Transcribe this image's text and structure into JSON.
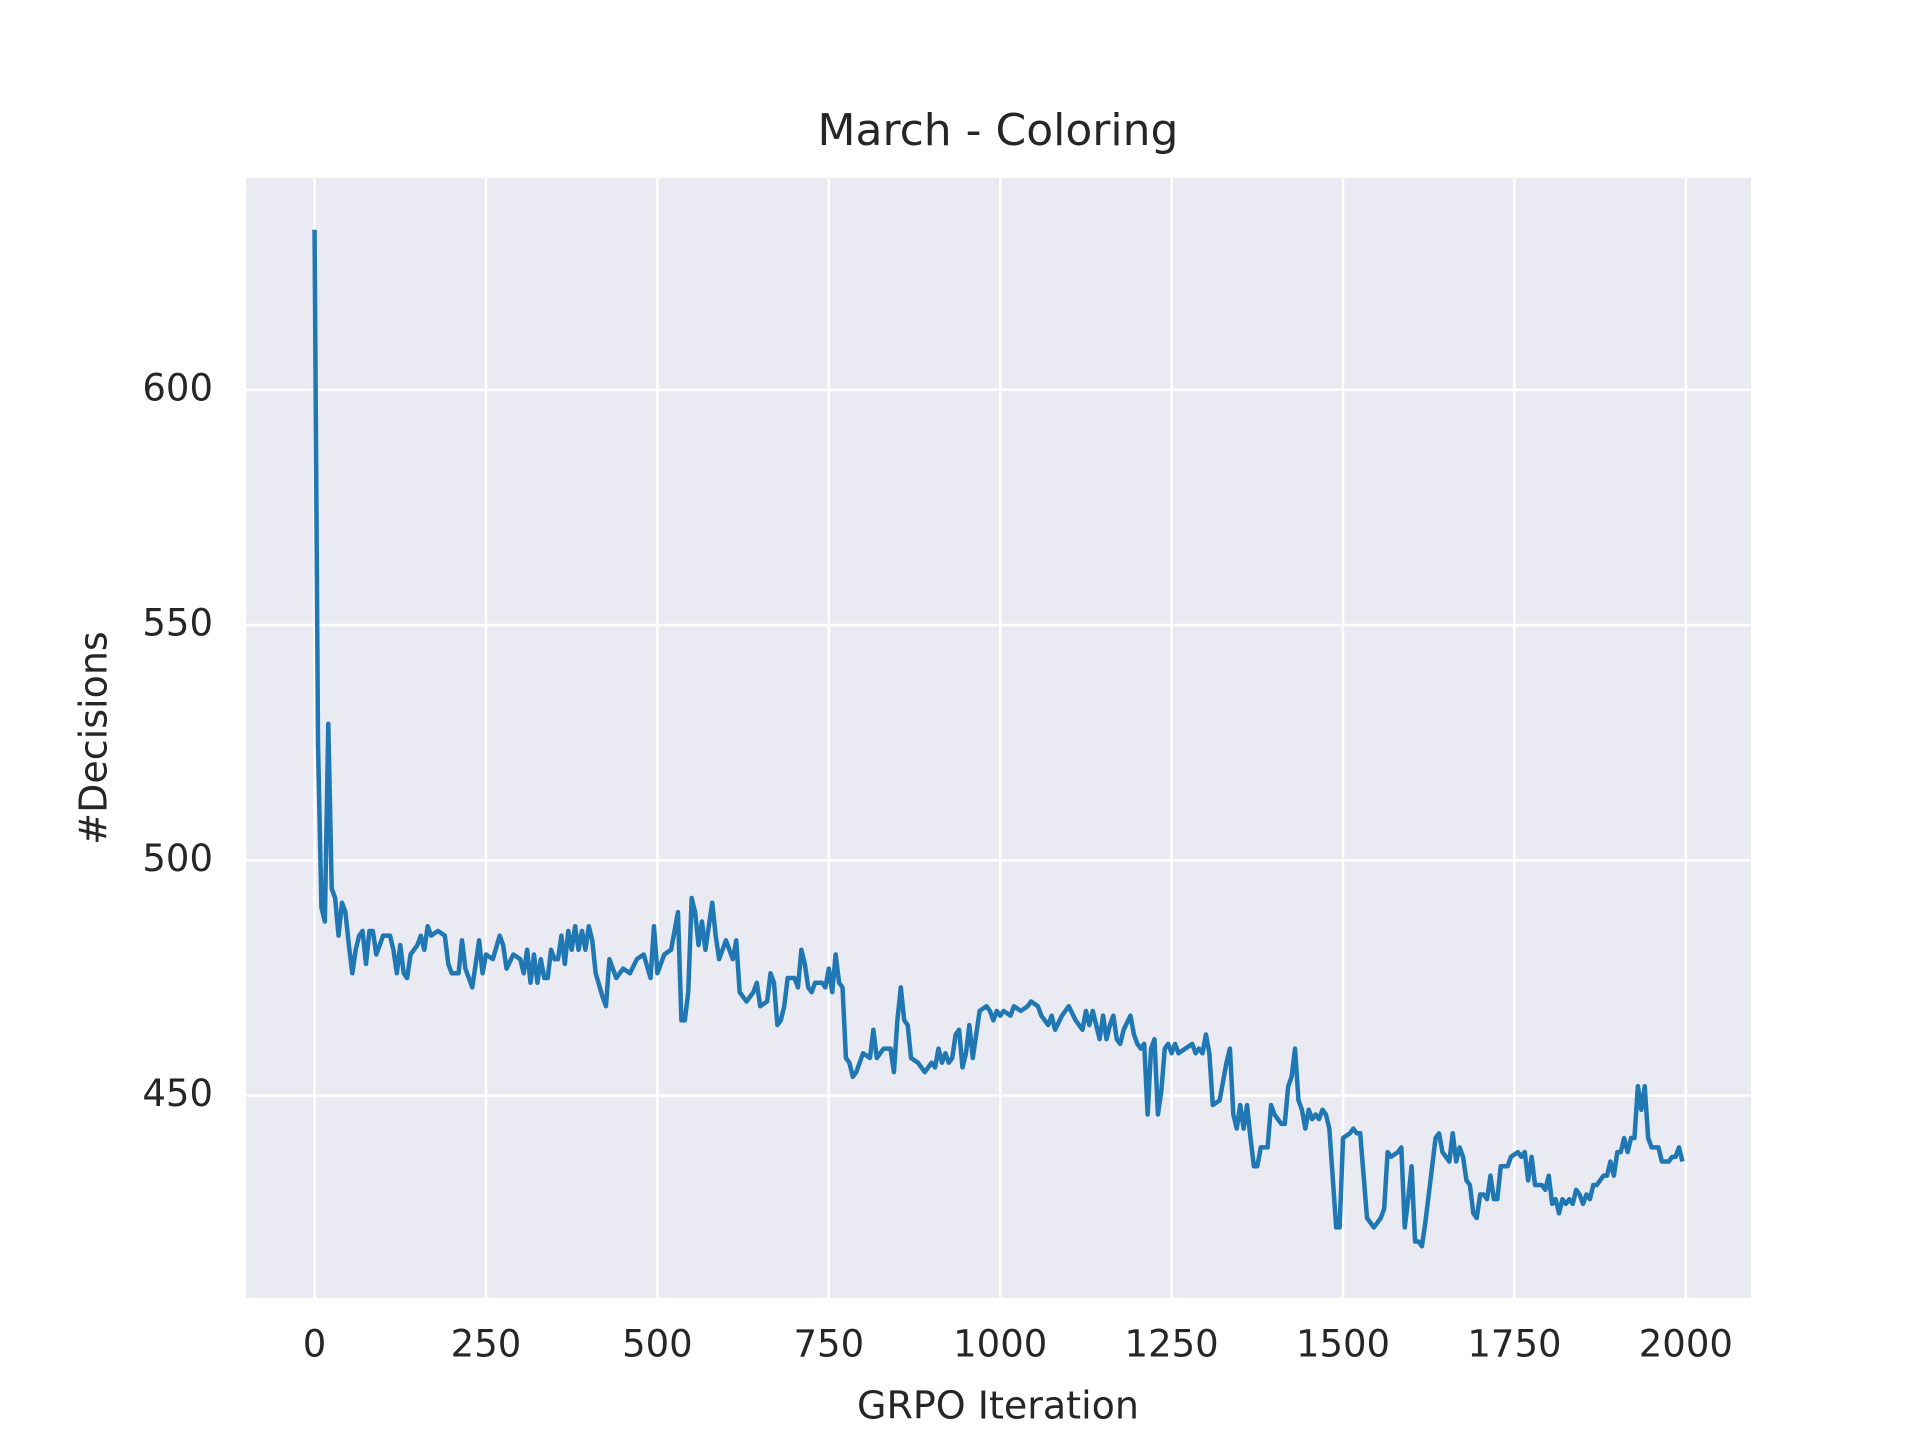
{
  "chart_data": {
    "type": "line",
    "title": "March - Coloring",
    "xlabel": "GRPO Iteration",
    "ylabel": "#Decisions",
    "x": [
      0,
      5,
      10,
      15,
      20,
      25,
      30,
      35,
      40,
      45,
      50,
      55,
      60,
      65,
      70,
      75,
      80,
      85,
      90,
      100,
      110,
      115,
      120,
      125,
      130,
      135,
      140,
      150,
      155,
      160,
      165,
      170,
      180,
      190,
      195,
      200,
      210,
      215,
      220,
      230,
      240,
      245,
      250,
      260,
      270,
      275,
      280,
      290,
      300,
      305,
      310,
      315,
      320,
      325,
      330,
      335,
      340,
      345,
      350,
      355,
      360,
      365,
      370,
      375,
      380,
      385,
      390,
      395,
      400,
      405,
      410,
      420,
      425,
      430,
      440,
      450,
      460,
      470,
      480,
      490,
      495,
      500,
      505,
      510,
      520,
      530,
      535,
      540,
      545,
      550,
      555,
      560,
      565,
      570,
      580,
      585,
      590,
      600,
      610,
      615,
      620,
      630,
      640,
      645,
      650,
      660,
      665,
      670,
      675,
      680,
      685,
      690,
      700,
      705,
      710,
      715,
      720,
      725,
      730,
      740,
      745,
      750,
      755,
      760,
      765,
      770,
      775,
      780,
      785,
      790,
      800,
      810,
      815,
      820,
      830,
      840,
      845,
      850,
      855,
      860,
      865,
      870,
      880,
      890,
      900,
      905,
      910,
      915,
      920,
      925,
      930,
      935,
      940,
      945,
      950,
      955,
      960,
      970,
      980,
      985,
      990,
      995,
      1000,
      1005,
      1015,
      1020,
      1030,
      1040,
      1045,
      1055,
      1060,
      1070,
      1075,
      1080,
      1090,
      1100,
      1110,
      1115,
      1120,
      1125,
      1130,
      1135,
      1140,
      1145,
      1150,
      1155,
      1160,
      1165,
      1170,
      1175,
      1180,
      1190,
      1195,
      1200,
      1205,
      1210,
      1215,
      1220,
      1225,
      1230,
      1235,
      1240,
      1245,
      1250,
      1255,
      1260,
      1270,
      1280,
      1285,
      1290,
      1295,
      1300,
      1305,
      1310,
      1320,
      1330,
      1335,
      1340,
      1345,
      1350,
      1355,
      1360,
      1365,
      1370,
      1375,
      1380,
      1390,
      1395,
      1400,
      1410,
      1415,
      1420,
      1425,
      1430,
      1435,
      1440,
      1445,
      1450,
      1455,
      1460,
      1465,
      1470,
      1475,
      1480,
      1490,
      1495,
      1500,
      1510,
      1515,
      1520,
      1525,
      1535,
      1540,
      1545,
      1555,
      1560,
      1565,
      1570,
      1580,
      1585,
      1590,
      1595,
      1600,
      1605,
      1610,
      1615,
      1620,
      1630,
      1635,
      1640,
      1645,
      1650,
      1655,
      1660,
      1665,
      1670,
      1675,
      1680,
      1685,
      1690,
      1695,
      1700,
      1705,
      1710,
      1715,
      1720,
      1725,
      1730,
      1735,
      1740,
      1745,
      1755,
      1760,
      1765,
      1770,
      1775,
      1780,
      1790,
      1795,
      1800,
      1805,
      1810,
      1815,
      1820,
      1825,
      1830,
      1835,
      1840,
      1845,
      1850,
      1855,
      1860,
      1865,
      1870,
      1875,
      1880,
      1885,
      1890,
      1895,
      1900,
      1905,
      1910,
      1915,
      1920,
      1925,
      1930,
      1935,
      1940,
      1945,
      1950,
      1955,
      1960,
      1965,
      1975,
      1980,
      1985,
      1990,
      1995
    ],
    "values": [
      634,
      525,
      490,
      487,
      529,
      494,
      492,
      484,
      491,
      489,
      482,
      476,
      481,
      484,
      485,
      478,
      485,
      485,
      480,
      484,
      484,
      481,
      476,
      482,
      476,
      475,
      480,
      482,
      484,
      481,
      486,
      484,
      485,
      484,
      478,
      476,
      476,
      483,
      477,
      473,
      483,
      476,
      480,
      479,
      484,
      482,
      477,
      480,
      479,
      476,
      481,
      474,
      480,
      474,
      479,
      475,
      475,
      481,
      479,
      479,
      484,
      478,
      485,
      481,
      486,
      481,
      485,
      481,
      486,
      483,
      476,
      471,
      469,
      479,
      475,
      477,
      476,
      479,
      480,
      475,
      486,
      476,
      478,
      480,
      481,
      489,
      466,
      466,
      472,
      492,
      489,
      482,
      487,
      481,
      491,
      484,
      479,
      483,
      479,
      483,
      472,
      470,
      472,
      474,
      469,
      470,
      476,
      474,
      465,
      466,
      469,
      475,
      475,
      473,
      481,
      478,
      473,
      472,
      474,
      474,
      473,
      477,
      472,
      480,
      474,
      473,
      458,
      457,
      454,
      455,
      459,
      458,
      464,
      458,
      460,
      460,
      455,
      466,
      473,
      466,
      465,
      458,
      457,
      455,
      457,
      456,
      460,
      457,
      459,
      457,
      458,
      463,
      464,
      456,
      459,
      465,
      458,
      468,
      469,
      468,
      466,
      468,
      467,
      468,
      467,
      469,
      468,
      469,
      470,
      469,
      467,
      465,
      467,
      464,
      467,
      469,
      466,
      465,
      464,
      468,
      465,
      468,
      465,
      462,
      467,
      462,
      465,
      467,
      462,
      461,
      464,
      467,
      463,
      461,
      460,
      461,
      446,
      460,
      462,
      446,
      451,
      460,
      461,
      459,
      461,
      459,
      460,
      461,
      459,
      460,
      459,
      463,
      459,
      448,
      449,
      457,
      460,
      446,
      443,
      448,
      443,
      448,
      441,
      435,
      435,
      439,
      439,
      448,
      446,
      444,
      444,
      452,
      454,
      460,
      449,
      447,
      443,
      447,
      445,
      446,
      445,
      447,
      446,
      443,
      422,
      422,
      441,
      442,
      443,
      442,
      442,
      424,
      423,
      422,
      424,
      426,
      438,
      437,
      438,
      439,
      422,
      428,
      435,
      419,
      419,
      418,
      423,
      435,
      441,
      442,
      438,
      437,
      436,
      442,
      436,
      439,
      437,
      432,
      431,
      425,
      424,
      429,
      429,
      428,
      433,
      428,
      428,
      435,
      435,
      435,
      437,
      438,
      437,
      438,
      432,
      437,
      431,
      431,
      430,
      433,
      427,
      428,
      425,
      428,
      427,
      428,
      427,
      430,
      429,
      427,
      429,
      428,
      431,
      431,
      432,
      433,
      433,
      436,
      433,
      438,
      438,
      441,
      438,
      441,
      441,
      452,
      447,
      452,
      441,
      439,
      439,
      439,
      436,
      436,
      437,
      437,
      439,
      436
    ],
    "color": "#1f77b4",
    "xlim": [
      -100,
      2095
    ],
    "ylim": [
      407,
      645
    ],
    "xticks": [
      0,
      250,
      500,
      750,
      1000,
      1250,
      1500,
      1750,
      2000
    ],
    "yticks": [
      450,
      500,
      550,
      600
    ],
    "grid": true
  }
}
